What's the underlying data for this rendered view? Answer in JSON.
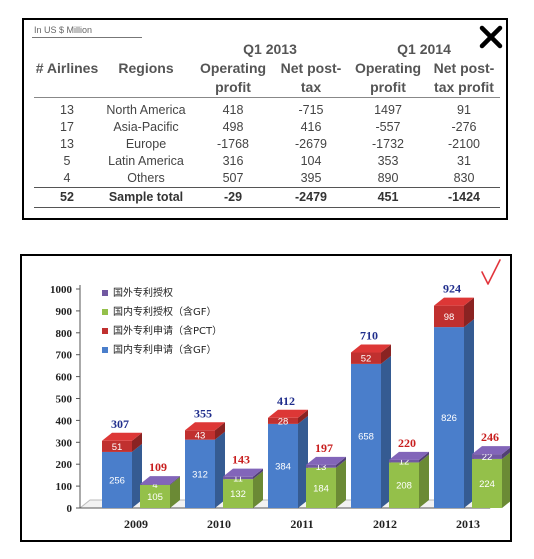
{
  "table": {
    "unit_note": "In US $ Million",
    "headers": {
      "airlines": "# Airlines",
      "regions": "Regions",
      "q1_2013": "Q1 2013",
      "q1_2014": "Q1 2014",
      "op_profit_1": "Operating",
      "op_profit_2": "profit",
      "net_1": "Net post-",
      "net_2": "tax",
      "net_2014_2": "tax profit"
    },
    "rows": [
      {
        "airlines": "13",
        "region": "North America",
        "op2013": "418",
        "net2013": "-715",
        "op2014": "1497",
        "net2014": "91"
      },
      {
        "airlines": "17",
        "region": "Asia-Pacific",
        "op2013": "498",
        "net2013": "416",
        "op2014": "-557",
        "net2014": "-276"
      },
      {
        "airlines": "13",
        "region": "Europe",
        "op2013": "-1768",
        "net2013": "-2679",
        "op2014": "-1732",
        "net2014": "-2100"
      },
      {
        "airlines": "5",
        "region": "Latin America",
        "op2013": "316",
        "net2013": "104",
        "op2014": "353",
        "net2014": "31"
      },
      {
        "airlines": "4",
        "region": "Others",
        "op2013": "507",
        "net2013": "395",
        "op2014": "890",
        "net2014": "830"
      }
    ],
    "total": {
      "airlines": "52",
      "region": "Sample total",
      "op2013": "-29",
      "net2013": "-2479",
      "op2014": "451",
      "net2014": "-1424"
    }
  },
  "colors": {
    "blue": "#4a7ecb",
    "red": "#c0302f",
    "green": "#94c04a",
    "purple": "#7158a1",
    "total_blue": "#1f2d8c",
    "total_red": "#c81e1e",
    "check": "#e2353c"
  },
  "icons": {
    "close": "close-icon",
    "check": "check-mark-icon"
  },
  "chart_data": {
    "type": "bar",
    "stacked": true,
    "grouped": true,
    "categories": [
      "2009",
      "2010",
      "2011",
      "2012",
      "2013"
    ],
    "ylim": [
      0,
      1000
    ],
    "yticks": [
      0,
      100,
      200,
      300,
      400,
      500,
      600,
      700,
      800,
      900,
      1000
    ],
    "legend_position": "top-left",
    "legend": [
      "国外专利授权",
      "国内专利授权（含GF）",
      "国外专利申请（含PCT）",
      "国内专利申请（含GF）"
    ],
    "groups": [
      {
        "stack": "applications",
        "series": [
          {
            "name": "国内专利申请（含GF）",
            "color": "blue",
            "values": [
              256,
              312,
              384,
              658,
              826
            ]
          },
          {
            "name": "国外专利申请（含PCT）",
            "color": "red",
            "values": [
              51,
              43,
              28,
              52,
              98
            ]
          }
        ],
        "totals": [
          307,
          355,
          412,
          710,
          924
        ],
        "total_color": "total_blue"
      },
      {
        "stack": "grants",
        "series": [
          {
            "name": "国内专利授权（含GF）",
            "color": "green",
            "values": [
              105,
              132,
              184,
              208,
              224
            ]
          },
          {
            "name": "国外专利授权",
            "color": "purple",
            "values": [
              4,
              11,
              13,
              12,
              22
            ]
          }
        ],
        "totals": [
          109,
          143,
          197,
          220,
          246
        ],
        "total_color": "total_red"
      }
    ]
  }
}
